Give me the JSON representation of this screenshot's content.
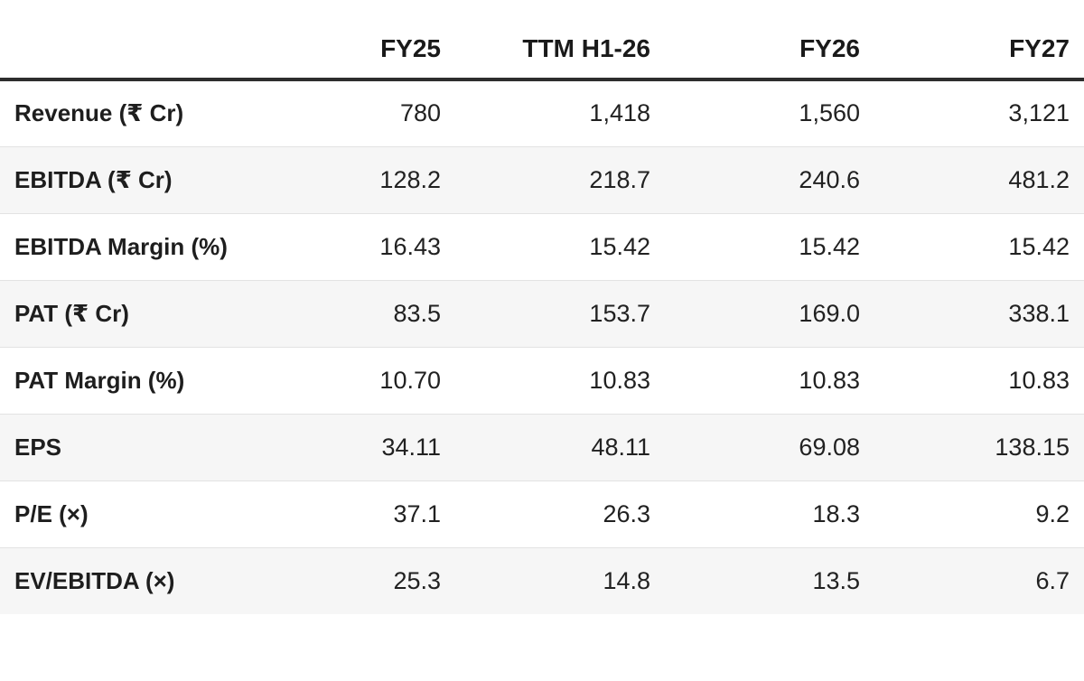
{
  "colors": {
    "header_rule": "#2d2d2d",
    "row_divider": "#e3e3e3",
    "row_stripe": "#f6f6f6",
    "text_primary": "#1e1e1e"
  },
  "table": {
    "header": {
      "metric": "",
      "col1": "FY25",
      "col2": "TTM H1-26",
      "col3": "FY26",
      "col4": "FY27"
    },
    "rows": [
      {
        "label": "Revenue (₹ Cr)",
        "values": [
          "780",
          "1,418",
          "1,560",
          "3,121"
        ]
      },
      {
        "label": "EBITDA (₹ Cr)",
        "values": [
          "128.2",
          "218.7",
          "240.6",
          "481.2"
        ]
      },
      {
        "label": "EBITDA Margin (%)",
        "values": [
          "16.43",
          "15.42",
          "15.42",
          "15.42"
        ]
      },
      {
        "label": "PAT (₹ Cr)",
        "values": [
          "83.5",
          "153.7",
          "169.0",
          "338.1"
        ]
      },
      {
        "label": "PAT Margin (%)",
        "values": [
          "10.70",
          "10.83",
          "10.83",
          "10.83"
        ]
      },
      {
        "label": "EPS",
        "values": [
          "34.11",
          "48.11",
          "69.08",
          "138.15"
        ]
      },
      {
        "label": "P/E (×)",
        "values": [
          "37.1",
          "26.3",
          "18.3",
          "9.2"
        ]
      },
      {
        "label": "EV/EBITDA (×)",
        "values": [
          "25.3",
          "14.8",
          "13.5",
          "6.7"
        ]
      }
    ]
  },
  "chart_data": {
    "type": "table",
    "columns": [
      "FY25",
      "TTM H1-26",
      "FY26",
      "FY27"
    ],
    "rows": [
      {
        "metric": "Revenue (₹ Cr)",
        "values": [
          780,
          1418,
          1560,
          3121
        ]
      },
      {
        "metric": "EBITDA (₹ Cr)",
        "values": [
          128.2,
          218.7,
          240.6,
          481.2
        ]
      },
      {
        "metric": "EBITDA Margin (%)",
        "values": [
          16.43,
          15.42,
          15.42,
          15.42
        ]
      },
      {
        "metric": "PAT (₹ Cr)",
        "values": [
          83.5,
          153.7,
          169.0,
          338.1
        ]
      },
      {
        "metric": "PAT Margin (%)",
        "values": [
          10.7,
          10.83,
          10.83,
          10.83
        ]
      },
      {
        "metric": "EPS",
        "values": [
          34.11,
          48.11,
          69.08,
          138.15
        ]
      },
      {
        "metric": "P/E (×)",
        "values": [
          37.1,
          26.3,
          18.3,
          9.2
        ]
      },
      {
        "metric": "EV/EBITDA (×)",
        "values": [
          25.3,
          14.8,
          13.5,
          6.7
        ]
      }
    ],
    "layout": {
      "striped_rows": true,
      "header_rule": true,
      "first_column_align": "left",
      "value_align": "right"
    }
  }
}
